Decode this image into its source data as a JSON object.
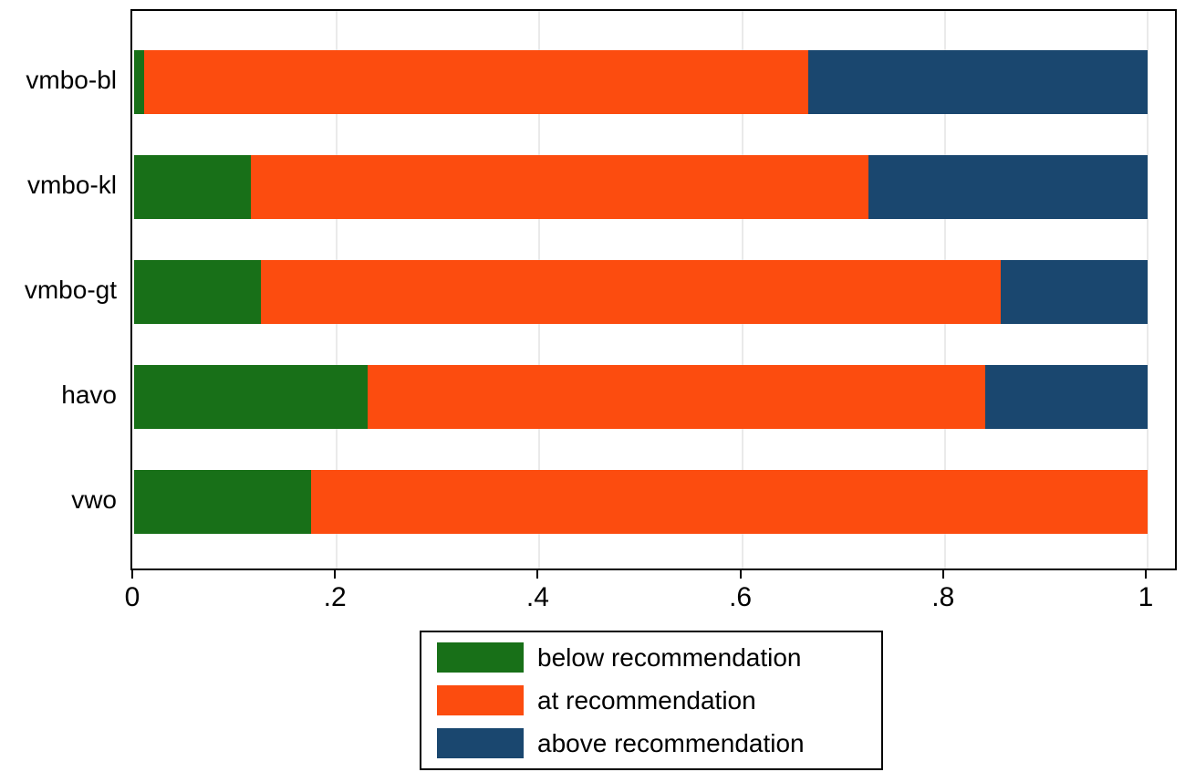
{
  "chart_data": {
    "type": "bar",
    "orientation": "horizontal",
    "stacked": true,
    "title": "",
    "xlabel": "",
    "ylabel": "",
    "categories": [
      "vmbo-bl",
      "vmbo-kl",
      "vmbo-gt",
      "havo",
      "vwo"
    ],
    "series": [
      {
        "name": "below recommendation",
        "color": "#187018",
        "values": [
          0.01,
          0.115,
          0.125,
          0.23,
          0.175
        ]
      },
      {
        "name": "at recommendation",
        "color": "#fc4c0f",
        "values": [
          0.655,
          0.61,
          0.73,
          0.61,
          0.825
        ]
      },
      {
        "name": "above recommendation",
        "color": "#1a476f",
        "values": [
          0.335,
          0.275,
          0.145,
          0.16,
          0.0
        ]
      }
    ],
    "xlim": [
      0,
      1
    ],
    "xticks": [
      0,
      0.2,
      0.4,
      0.6,
      0.8,
      1
    ],
    "xtick_labels": [
      "0",
      ".2",
      ".4",
      ".6",
      ".8",
      "1"
    ],
    "grid": true,
    "gridline_color": "#eaeaea",
    "legend_position": "bottom",
    "legend_entries": [
      "below recommendation",
      "at recommendation",
      "above recommendation"
    ]
  }
}
